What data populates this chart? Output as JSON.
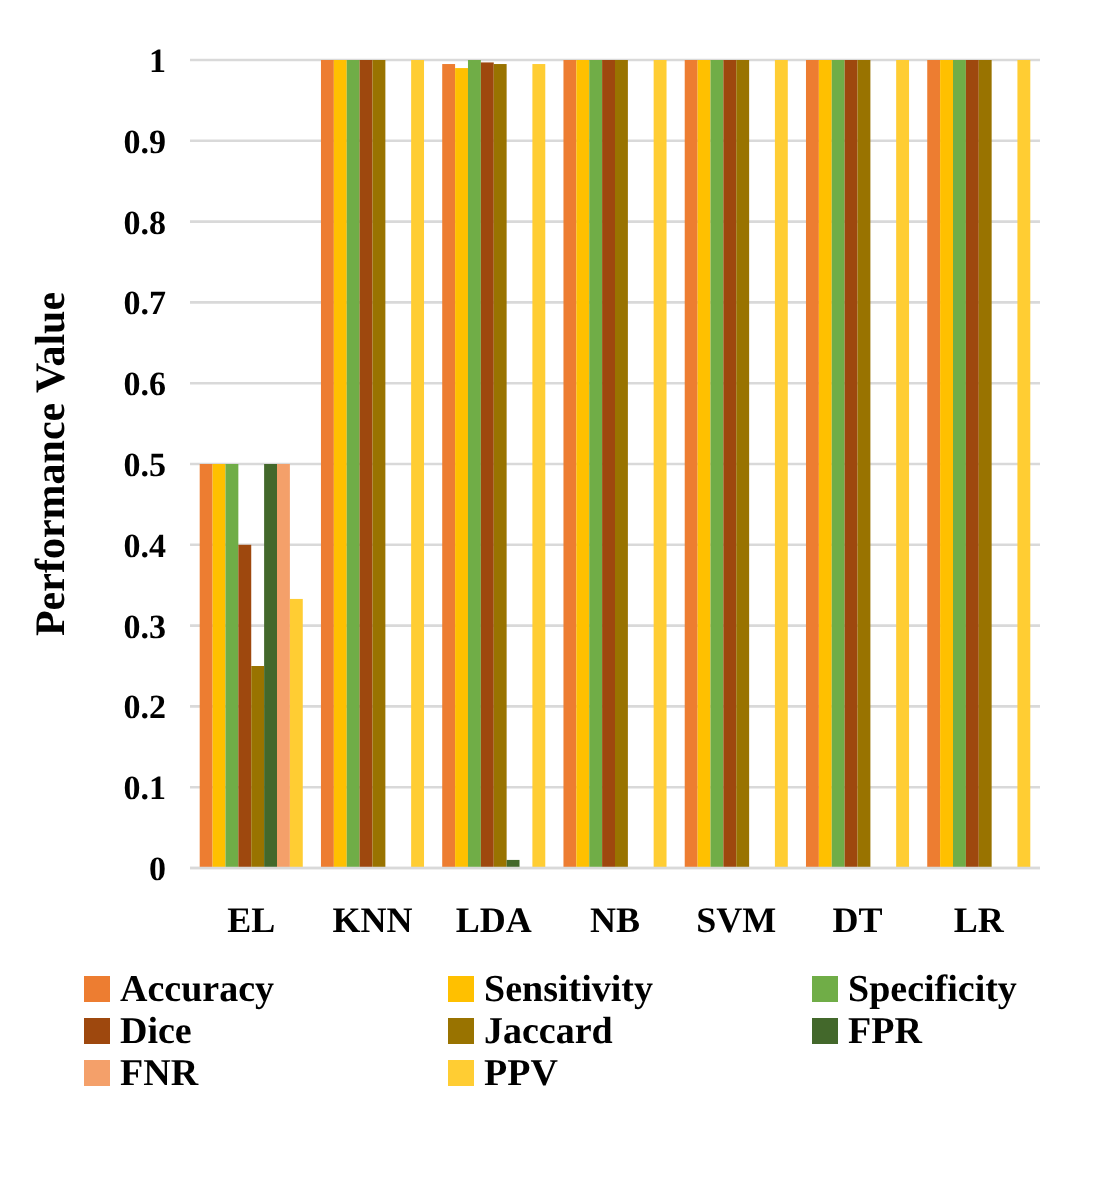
{
  "chart_data": {
    "type": "bar",
    "ylabel": "Performance Value",
    "categories": [
      "EL",
      "KNN",
      "LDA",
      "NB",
      "SVM",
      "DT",
      "LR"
    ],
    "series": [
      {
        "name": "Accuracy",
        "color": "#ed7d31",
        "values": [
          0.5,
          1,
          0.995,
          1,
          1,
          1,
          1
        ]
      },
      {
        "name": "Sensitivity",
        "color": "#ffc000",
        "values": [
          0.5,
          1,
          0.99,
          1,
          1,
          1,
          1
        ]
      },
      {
        "name": "Specificity",
        "color": "#70ad47",
        "values": [
          0.5,
          1,
          1,
          1,
          1,
          1,
          1
        ]
      },
      {
        "name": "Dice",
        "color": "#9e480e",
        "values": [
          0.4,
          1,
          0.997,
          1,
          1,
          1,
          1
        ]
      },
      {
        "name": "Jaccard",
        "color": "#997300",
        "values": [
          0.25,
          1,
          0.995,
          1,
          1,
          1,
          1
        ]
      },
      {
        "name": "FPR",
        "color": "#43682b",
        "values": [
          0.5,
          0,
          0.01,
          0,
          0,
          0,
          0
        ]
      },
      {
        "name": "FNR",
        "color": "#f4a06a",
        "values": [
          0.5,
          0,
          0,
          0,
          0,
          0,
          0
        ]
      },
      {
        "name": "PPV",
        "color": "#ffcd33",
        "values": [
          0.333,
          1,
          0.995,
          1,
          1,
          1,
          1
        ]
      }
    ],
    "ylim": [
      0,
      1
    ],
    "yticks": [
      0,
      0.1,
      0.2,
      0.3,
      0.4,
      0.5,
      0.6,
      0.7,
      0.8,
      0.9,
      1
    ],
    "grid": "y",
    "legend": "bottom"
  }
}
